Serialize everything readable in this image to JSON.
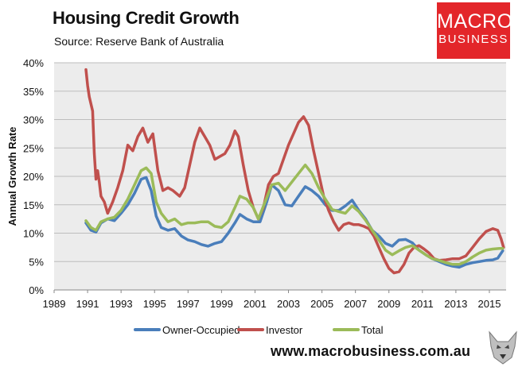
{
  "header": {
    "title": "Housing Credit Growth",
    "subtitle": "Source: Reserve Bank of Australia"
  },
  "logo": {
    "line1": "MACRO",
    "line2": "BUSINESS",
    "color": "#e3262a"
  },
  "footer": {
    "website": "www.macrobusiness.com.au"
  },
  "chart_data": {
    "type": "line",
    "title": "Housing Credit Growth",
    "xlabel": "",
    "ylabel": "Annual Growth Rate",
    "xlim": [
      1989,
      2016
    ],
    "ylim": [
      0,
      40
    ],
    "x_ticks": [
      1989,
      1991,
      1993,
      1995,
      1997,
      1999,
      2001,
      2003,
      2005,
      2007,
      2009,
      2011,
      2013,
      2015
    ],
    "x_tick_labels": [
      "1989",
      "1991",
      "1993",
      "1995",
      "1997",
      "1999",
      "2001",
      "2003",
      "2005",
      "2007",
      "2009",
      "2011",
      "2013",
      "2015"
    ],
    "y_ticks": [
      0,
      5,
      10,
      15,
      20,
      25,
      30,
      35,
      40
    ],
    "y_tick_labels": [
      "0%",
      "5%",
      "10%",
      "15%",
      "20%",
      "25%",
      "30%",
      "35%",
      "40%"
    ],
    "grid": true,
    "legend_position": "bottom",
    "plot_background": "#ececec",
    "series": [
      {
        "name": "Owner-Occupied",
        "color": "#4a7ebb",
        "points": [
          [
            1990.9,
            11.8
          ],
          [
            1991.2,
            10.5
          ],
          [
            1991.5,
            10.2
          ],
          [
            1991.8,
            11.8
          ],
          [
            1992.2,
            12.5
          ],
          [
            1992.6,
            12.2
          ],
          [
            1993.0,
            13.5
          ],
          [
            1993.4,
            15.0
          ],
          [
            1993.8,
            17.0
          ],
          [
            1994.2,
            19.5
          ],
          [
            1994.5,
            19.8
          ],
          [
            1994.8,
            17.5
          ],
          [
            1995.1,
            13.0
          ],
          [
            1995.4,
            11.0
          ],
          [
            1995.8,
            10.5
          ],
          [
            1996.2,
            10.8
          ],
          [
            1996.6,
            9.5
          ],
          [
            1997.0,
            8.8
          ],
          [
            1997.4,
            8.5
          ],
          [
            1997.8,
            8.0
          ],
          [
            1998.2,
            7.7
          ],
          [
            1998.6,
            8.2
          ],
          [
            1999.0,
            8.5
          ],
          [
            1999.4,
            10.0
          ],
          [
            1999.8,
            11.8
          ],
          [
            2000.1,
            13.3
          ],
          [
            2000.5,
            12.5
          ],
          [
            2000.9,
            12.0
          ],
          [
            2001.3,
            12.0
          ],
          [
            2001.7,
            15.5
          ],
          [
            2002.0,
            18.5
          ],
          [
            2002.4,
            17.5
          ],
          [
            2002.8,
            15.0
          ],
          [
            2003.2,
            14.8
          ],
          [
            2003.6,
            16.5
          ],
          [
            2004.0,
            18.2
          ],
          [
            2004.4,
            17.5
          ],
          [
            2004.8,
            16.5
          ],
          [
            2005.2,
            15.0
          ],
          [
            2005.6,
            14.0
          ],
          [
            2006.0,
            14.0
          ],
          [
            2006.4,
            14.8
          ],
          [
            2006.8,
            15.8
          ],
          [
            2007.2,
            14.0
          ],
          [
            2007.6,
            12.5
          ],
          [
            2008.0,
            10.5
          ],
          [
            2008.4,
            9.5
          ],
          [
            2008.8,
            8.2
          ],
          [
            2009.2,
            7.7
          ],
          [
            2009.6,
            8.8
          ],
          [
            2010.0,
            8.9
          ],
          [
            2010.4,
            8.3
          ],
          [
            2010.8,
            7.0
          ],
          [
            2011.2,
            6.2
          ],
          [
            2011.6,
            5.5
          ],
          [
            2012.0,
            5.0
          ],
          [
            2012.4,
            4.5
          ],
          [
            2012.8,
            4.2
          ],
          [
            2013.2,
            4.0
          ],
          [
            2013.6,
            4.5
          ],
          [
            2014.0,
            4.8
          ],
          [
            2014.4,
            5.0
          ],
          [
            2014.8,
            5.2
          ],
          [
            2015.2,
            5.3
          ],
          [
            2015.5,
            5.6
          ],
          [
            2015.8,
            6.9
          ]
        ]
      },
      {
        "name": "Investor",
        "color": "#c0504d",
        "points": [
          [
            1990.9,
            38.8
          ],
          [
            1991.0,
            36.0
          ],
          [
            1991.1,
            34.0
          ],
          [
            1991.3,
            31.5
          ],
          [
            1991.4,
            24.0
          ],
          [
            1991.5,
            19.5
          ],
          [
            1991.6,
            21.0
          ],
          [
            1991.7,
            19.0
          ],
          [
            1991.8,
            16.5
          ],
          [
            1992.0,
            15.5
          ],
          [
            1992.2,
            13.5
          ],
          [
            1992.5,
            15.5
          ],
          [
            1992.8,
            18.0
          ],
          [
            1993.1,
            21.0
          ],
          [
            1993.4,
            25.5
          ],
          [
            1993.7,
            24.5
          ],
          [
            1994.0,
            27.0
          ],
          [
            1994.3,
            28.5
          ],
          [
            1994.6,
            26.0
          ],
          [
            1994.9,
            27.5
          ],
          [
            1995.2,
            21.0
          ],
          [
            1995.5,
            17.5
          ],
          [
            1995.8,
            18.0
          ],
          [
            1996.1,
            17.5
          ],
          [
            1996.5,
            16.5
          ],
          [
            1996.8,
            18.0
          ],
          [
            1997.1,
            22.0
          ],
          [
            1997.4,
            26.0
          ],
          [
            1997.7,
            28.5
          ],
          [
            1998.0,
            27.0
          ],
          [
            1998.3,
            25.5
          ],
          [
            1998.6,
            23.0
          ],
          [
            1998.9,
            23.5
          ],
          [
            1999.2,
            24.0
          ],
          [
            1999.5,
            25.5
          ],
          [
            1999.8,
            28.0
          ],
          [
            2000.0,
            27.0
          ],
          [
            2000.3,
            22.0
          ],
          [
            2000.6,
            17.5
          ],
          [
            2000.9,
            14.5
          ],
          [
            2001.2,
            12.5
          ],
          [
            2001.5,
            14.5
          ],
          [
            2001.8,
            18.5
          ],
          [
            2002.1,
            20.0
          ],
          [
            2002.4,
            20.5
          ],
          [
            2002.7,
            23.0
          ],
          [
            2003.0,
            25.5
          ],
          [
            2003.3,
            27.5
          ],
          [
            2003.6,
            29.5
          ],
          [
            2003.9,
            30.5
          ],
          [
            2004.2,
            29.0
          ],
          [
            2004.5,
            24.5
          ],
          [
            2004.8,
            20.5
          ],
          [
            2005.1,
            16.5
          ],
          [
            2005.4,
            14.0
          ],
          [
            2005.7,
            12.0
          ],
          [
            2006.0,
            10.5
          ],
          [
            2006.3,
            11.5
          ],
          [
            2006.6,
            11.8
          ],
          [
            2006.9,
            11.5
          ],
          [
            2007.2,
            11.5
          ],
          [
            2007.5,
            11.2
          ],
          [
            2007.8,
            10.8
          ],
          [
            2008.1,
            9.5
          ],
          [
            2008.4,
            7.5
          ],
          [
            2008.7,
            5.5
          ],
          [
            2009.0,
            3.8
          ],
          [
            2009.3,
            3.0
          ],
          [
            2009.6,
            3.2
          ],
          [
            2009.9,
            4.5
          ],
          [
            2010.2,
            6.5
          ],
          [
            2010.5,
            7.5
          ],
          [
            2010.8,
            7.8
          ],
          [
            2011.1,
            7.2
          ],
          [
            2011.4,
            6.5
          ],
          [
            2011.7,
            5.5
          ],
          [
            2012.0,
            5.2
          ],
          [
            2012.4,
            5.3
          ],
          [
            2012.8,
            5.5
          ],
          [
            2013.2,
            5.5
          ],
          [
            2013.6,
            6.0
          ],
          [
            2014.0,
            7.5
          ],
          [
            2014.4,
            9.0
          ],
          [
            2014.8,
            10.3
          ],
          [
            2015.2,
            10.8
          ],
          [
            2015.5,
            10.5
          ],
          [
            2015.7,
            9.0
          ],
          [
            2015.85,
            7.5
          ]
        ]
      },
      {
        "name": "Total",
        "color": "#9bbb59",
        "points": [
          [
            1990.9,
            12.2
          ],
          [
            1991.2,
            11.0
          ],
          [
            1991.5,
            10.5
          ],
          [
            1991.8,
            12.0
          ],
          [
            1992.2,
            12.5
          ],
          [
            1992.6,
            12.8
          ],
          [
            1993.0,
            14.0
          ],
          [
            1993.4,
            16.0
          ],
          [
            1993.8,
            18.5
          ],
          [
            1994.2,
            21.0
          ],
          [
            1994.5,
            21.5
          ],
          [
            1994.8,
            20.5
          ],
          [
            1995.1,
            15.5
          ],
          [
            1995.4,
            13.5
          ],
          [
            1995.8,
            12.0
          ],
          [
            1996.2,
            12.5
          ],
          [
            1996.6,
            11.5
          ],
          [
            1997.0,
            11.8
          ],
          [
            1997.4,
            11.8
          ],
          [
            1997.8,
            12.0
          ],
          [
            1998.2,
            12.0
          ],
          [
            1998.6,
            11.2
          ],
          [
            1999.0,
            11.0
          ],
          [
            1999.4,
            12.0
          ],
          [
            1999.8,
            14.5
          ],
          [
            2000.1,
            16.5
          ],
          [
            2000.5,
            16.0
          ],
          [
            2000.9,
            14.5
          ],
          [
            2001.2,
            12.5
          ],
          [
            2001.6,
            15.5
          ],
          [
            2002.0,
            18.5
          ],
          [
            2002.4,
            18.8
          ],
          [
            2002.8,
            17.5
          ],
          [
            2003.2,
            19.0
          ],
          [
            2003.6,
            20.5
          ],
          [
            2004.0,
            22.0
          ],
          [
            2004.4,
            20.5
          ],
          [
            2004.8,
            18.0
          ],
          [
            2005.2,
            16.0
          ],
          [
            2005.6,
            14.2
          ],
          [
            2006.0,
            13.8
          ],
          [
            2006.4,
            13.5
          ],
          [
            2006.8,
            14.8
          ],
          [
            2007.2,
            13.8
          ],
          [
            2007.6,
            12.3
          ],
          [
            2008.0,
            10.5
          ],
          [
            2008.4,
            8.8
          ],
          [
            2008.8,
            7.0
          ],
          [
            2009.2,
            6.2
          ],
          [
            2009.6,
            6.9
          ],
          [
            2010.0,
            7.5
          ],
          [
            2010.4,
            7.8
          ],
          [
            2010.8,
            7.0
          ],
          [
            2011.2,
            6.2
          ],
          [
            2011.6,
            5.5
          ],
          [
            2012.0,
            5.2
          ],
          [
            2012.4,
            4.8
          ],
          [
            2012.8,
            4.5
          ],
          [
            2013.2,
            4.5
          ],
          [
            2013.6,
            5.0
          ],
          [
            2014.0,
            5.8
          ],
          [
            2014.4,
            6.5
          ],
          [
            2014.8,
            7.0
          ],
          [
            2015.2,
            7.2
          ],
          [
            2015.6,
            7.3
          ],
          [
            2015.8,
            7.3
          ]
        ]
      }
    ]
  }
}
